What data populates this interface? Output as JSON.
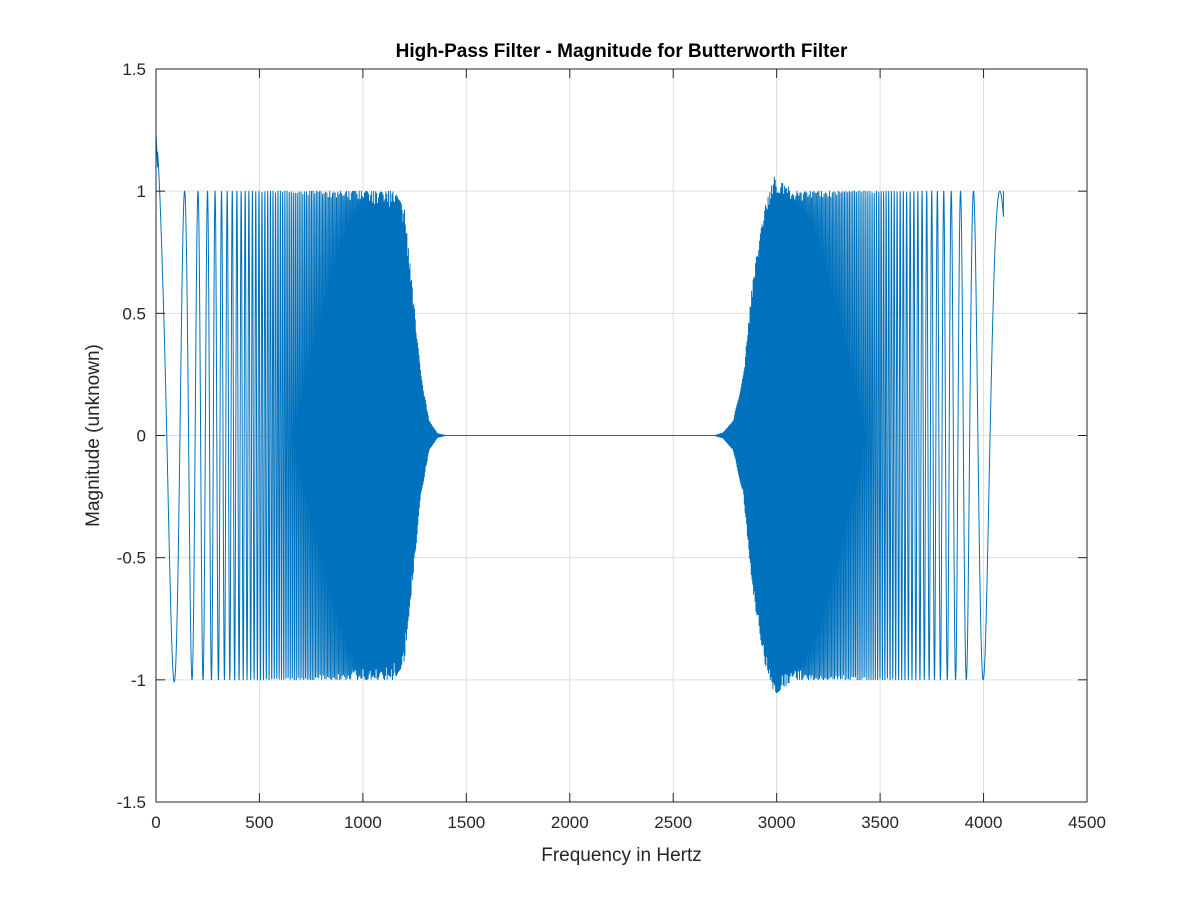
{
  "colors": {
    "series": "#0072BD",
    "axes": "#262626",
    "grid": "#DFDFDF",
    "background": "#FFFFFF"
  },
  "chart_data": {
    "type": "line",
    "title": "High-Pass Filter - Magnitude for Butterworth Filter",
    "xlabel": "Frequency in Hertz",
    "ylabel": "Magnitude (unknown)",
    "xlim": [
      0,
      4500
    ],
    "ylim": [
      -1.5,
      1.5
    ],
    "grid": true,
    "xticks": [
      0,
      500,
      1000,
      1500,
      2000,
      2500,
      3000,
      3500,
      4000,
      4500
    ],
    "xtick_labels": [
      "0",
      "500",
      "1000",
      "1500",
      "2000",
      "2500",
      "3000",
      "3500",
      "4000",
      "4500"
    ],
    "yticks": [
      -1.5,
      -1,
      -0.5,
      0,
      0.5,
      1,
      1.5
    ],
    "ytick_labels": [
      "-1.5",
      "-1",
      "-0.5",
      "0",
      "0.5",
      "1",
      "1.5"
    ],
    "series": [
      {
        "color": "#0072BD",
        "description": "dense oscillation between about -1 and 1 (peak near 1.24 at x close to 0), envelope decays to 0 between about 1200 and 1350 Hz, flat at 0 until about 2750 Hz, then grows back to amplitude about 1 (peaks near 1.06 around 3000 Hz) and continues oscillating up to about 4096 Hz, ending at 1",
        "x_end": 4096,
        "envelope": [
          [
            0,
            1.24
          ],
          [
            30,
            1.05
          ],
          [
            100,
            1.0
          ],
          [
            1150,
            1.0
          ],
          [
            1200,
            0.93
          ],
          [
            1240,
            0.6
          ],
          [
            1280,
            0.25
          ],
          [
            1320,
            0.06
          ],
          [
            1360,
            0.008
          ],
          [
            1400,
            0.0
          ],
          [
            2700,
            0.0
          ],
          [
            2740,
            0.01
          ],
          [
            2790,
            0.06
          ],
          [
            2840,
            0.25
          ],
          [
            2880,
            0.6
          ],
          [
            2930,
            0.9
          ],
          [
            2990,
            1.06
          ],
          [
            3050,
            1.02
          ],
          [
            3100,
            1.0
          ],
          [
            4096,
            1.0
          ]
        ]
      }
    ]
  }
}
